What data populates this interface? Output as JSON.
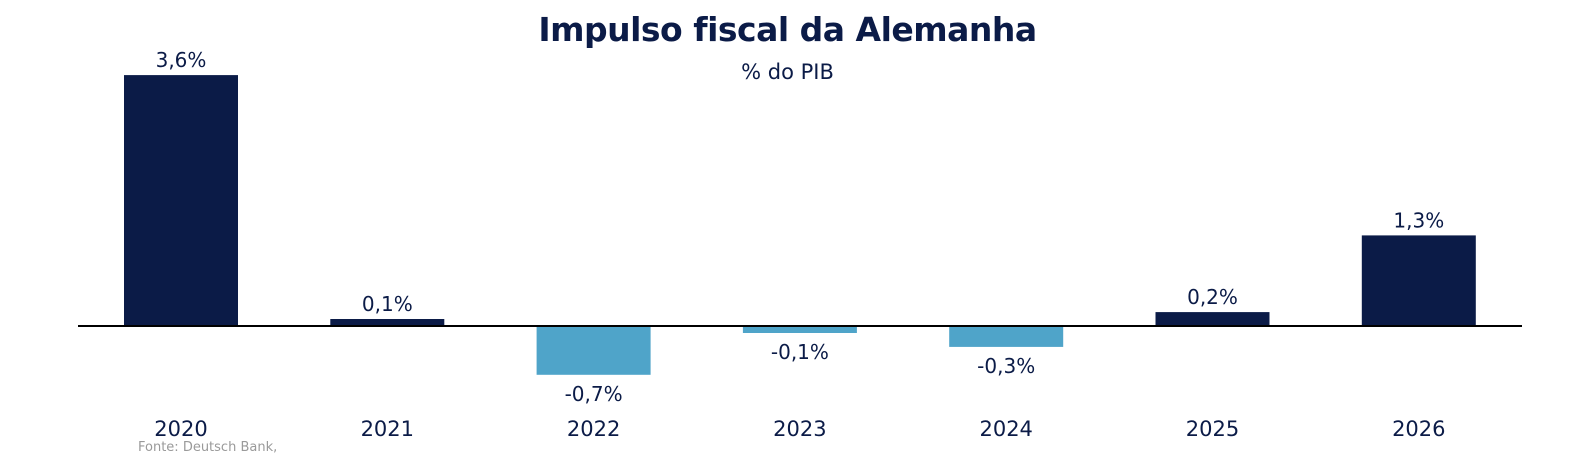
{
  "chart_data": {
    "type": "bar",
    "title": "Impulso fiscal da Alemanha",
    "subtitle": "% do PIB",
    "categories": [
      "2020",
      "2021",
      "2022",
      "2023",
      "2024",
      "2025",
      "2026"
    ],
    "values": [
      3.6,
      0.1,
      -0.7,
      -0.1,
      -0.3,
      0.2,
      1.3
    ],
    "data_labels": [
      "3,6%",
      "0,1%",
      "-0,7%",
      "-0,1%",
      "-0,3%",
      "0,2%",
      "1,3%"
    ],
    "colors": {
      "positive": "#0b1b47",
      "negative": "#4fa4c9",
      "axis": "#000000",
      "text": "#0b1b47"
    },
    "ylim": [
      -0.9,
      3.7
    ],
    "grid": false,
    "legend": "none",
    "source": "Fonte: Deutsch Bank,"
  }
}
